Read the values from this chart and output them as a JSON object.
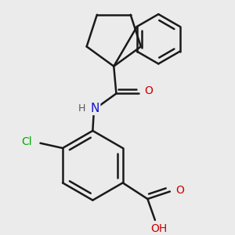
{
  "background_color": "#ebebeb",
  "bond_color": "#1a1a1a",
  "bond_width": 1.8,
  "atom_colors": {
    "N": "#1414cc",
    "O": "#cc0000",
    "Cl": "#00aa00",
    "C": "#1a1a1a",
    "H": "#555555"
  },
  "font_size": 10,
  "fig_width": 3.0,
  "fig_height": 3.0,
  "dpi": 100
}
